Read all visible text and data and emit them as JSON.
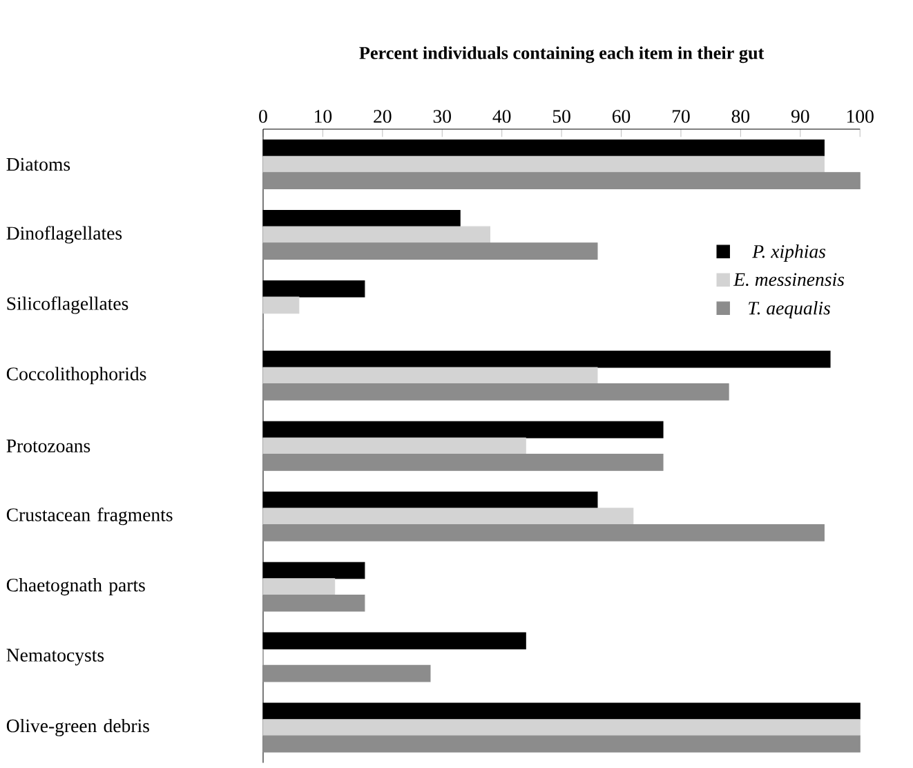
{
  "chart_data": {
    "type": "bar",
    "orientation": "horizontal",
    "title": "Percent individuals containing each item in their gut",
    "categories": [
      "Diatoms",
      "Dinoflagellates",
      "Silicoflagellates",
      "Coccolithophorids",
      "Protozoans",
      "Crustacean fragments",
      "Chaetognath parts",
      "Nematocysts",
      "Olive-green debris"
    ],
    "series": [
      {
        "name": "P. xiphias",
        "color": "#000000",
        "values": [
          94,
          33,
          17,
          95,
          67,
          56,
          17,
          44,
          100
        ]
      },
      {
        "name": "E. messinensis",
        "color": "#d3d3d3",
        "values": [
          94,
          38,
          6,
          56,
          44,
          62,
          12,
          0,
          100
        ]
      },
      {
        "name": "T. aequalis",
        "color": "#8c8c8c",
        "values": [
          100,
          56,
          0,
          78,
          67,
          94,
          17,
          28,
          100
        ]
      }
    ],
    "xlim": [
      0,
      100
    ],
    "xticks": [
      0,
      10,
      20,
      30,
      40,
      50,
      60,
      70,
      80,
      90,
      100
    ],
    "legend": "right",
    "grid": false
  }
}
